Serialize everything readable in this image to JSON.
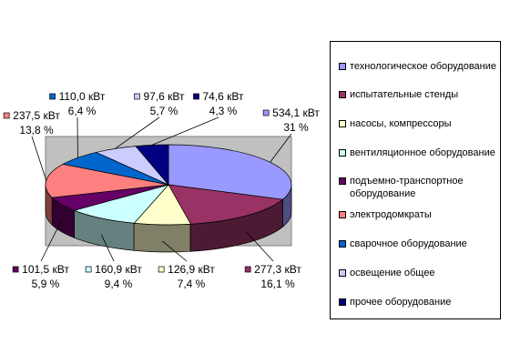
{
  "chart_data": {
    "type": "pie3d",
    "categories": [
      "технологическое оборудование",
      "испытательные стенды",
      "насосы, компрессоры",
      "вентиляционное оборудование",
      "подъемно-транспортное оборудование",
      "электродомкраты",
      "сварочное оборудование",
      "освещение общее",
      "прочее оборудование"
    ],
    "values": [
      534.1,
      277.3,
      126.9,
      160.9,
      101.5,
      237.5,
      110.0,
      97.6,
      74.6
    ],
    "value_labels": [
      "534,1 кВт",
      "277,3 кВт",
      "126,9 кВт",
      "160,9 кВт",
      "101,5 кВт",
      "237,5 кВт",
      "110,0 кВт",
      "97,6 кВт",
      "74,6 кВт"
    ],
    "percents": [
      31,
      16.1,
      7.4,
      9.4,
      5.9,
      13.8,
      6.4,
      5.7,
      4.3
    ],
    "percent_labels": [
      "31 %",
      "16,1 %",
      "7,4 %",
      "9,4 %",
      "5,9 %",
      "13,8 %",
      "6,4 %",
      "5,7 %",
      "4,3 %"
    ],
    "colors": [
      "#9999FF",
      "#993366",
      "#FFFFCC",
      "#CCFFFF",
      "#660066",
      "#FF8080",
      "#0066CC",
      "#CCCCFF",
      "#000080"
    ],
    "legend": "right"
  }
}
